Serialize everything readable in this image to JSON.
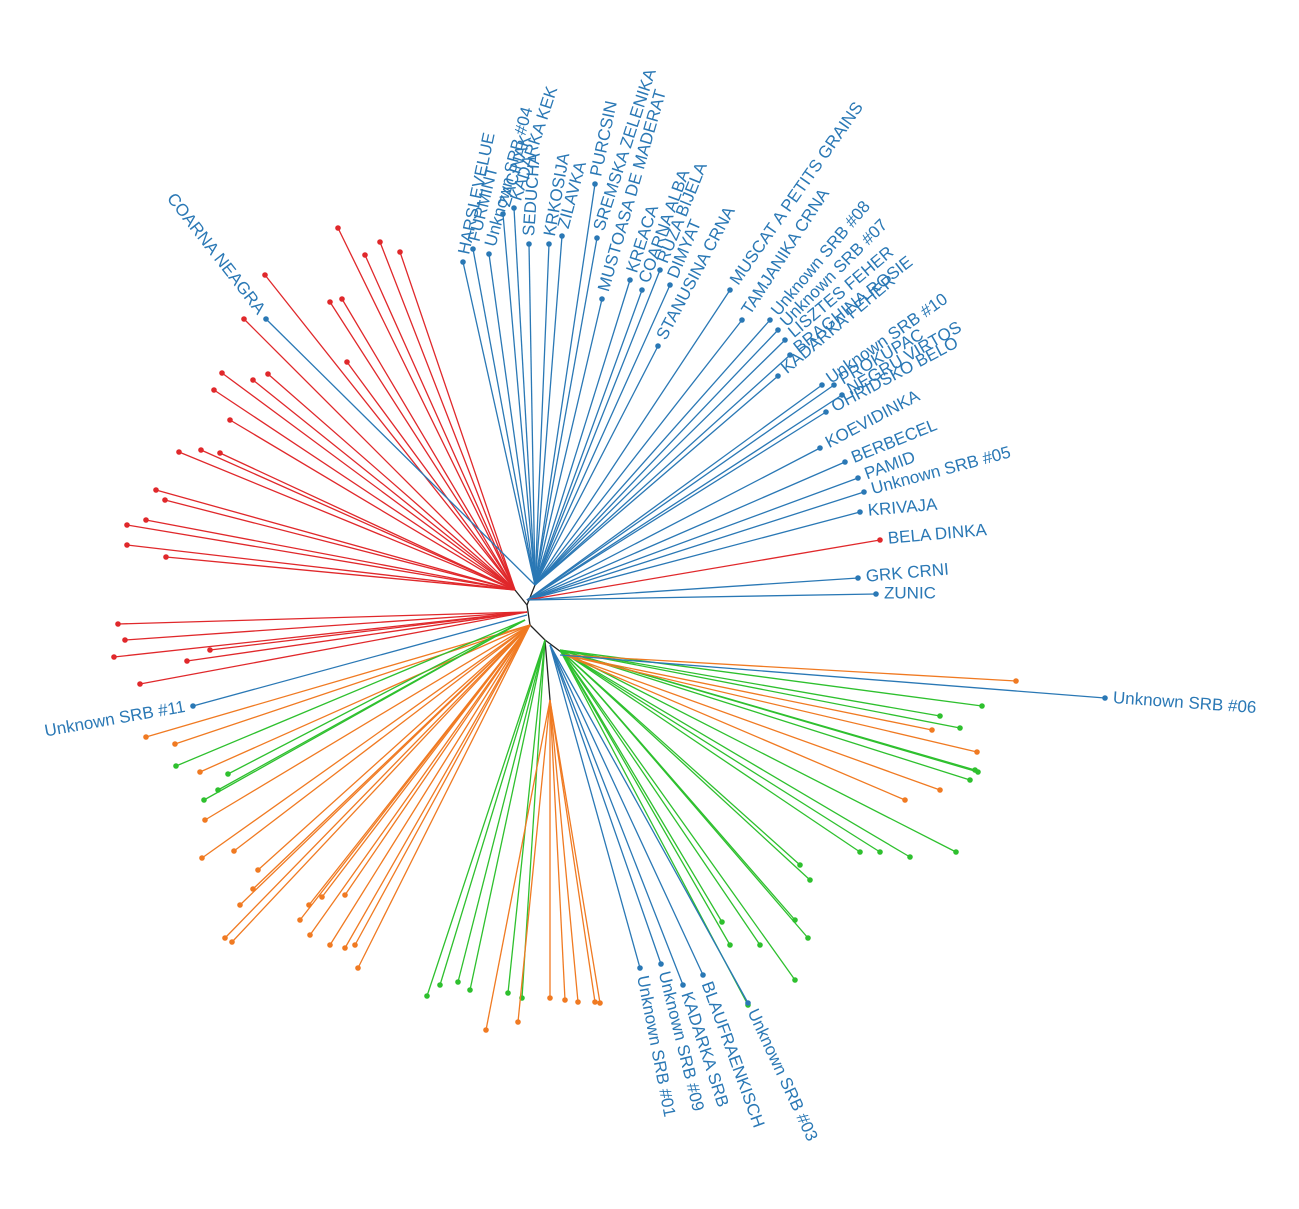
{
  "labels": [
    "COARNA NEAGRA",
    "HARSLEVELUE",
    "FURMINT",
    "Unknown SRB #04",
    "ZACINAK",
    "KADARKA KEK",
    "SEDUCHA",
    "KRKOSIJA",
    "ZILAVKA",
    "PURCSIN",
    "SREMSKA ZELENIKA",
    "MUSTOASA DE MADERAT",
    "KREACA",
    "COARNA ALBA",
    "RUZA BIJELA",
    "DIMYAT",
    "STANUSINA CRNA",
    "MUSCAT A PETITS GRAINS",
    "TAMJANIKA CRNA",
    "Unknown SRB #08",
    "Unknown SRB #07",
    "LISZTES FEHER",
    "BRAGHINA ROSIE",
    "KADARKA FEHER",
    "Unknown SRB #10",
    "PROKUPAC",
    "NEGRU VIRTOS",
    "OHRIDSKO BELO",
    "KOEVIDINKA",
    "BERBECEL",
    "PAMID",
    "Unknown SRB #05",
    "KRIVAJA",
    "BELA DINKA",
    "GRK CRNI",
    "ZUNIC",
    "Unknown SRB #06",
    "Unknown SRB #11",
    "Unknown SRB #01",
    "Unknown SRB #09",
    "KADARKA SRB",
    "BLAUFRAENKISCH",
    "Unknown SRB #03"
  ]
}
